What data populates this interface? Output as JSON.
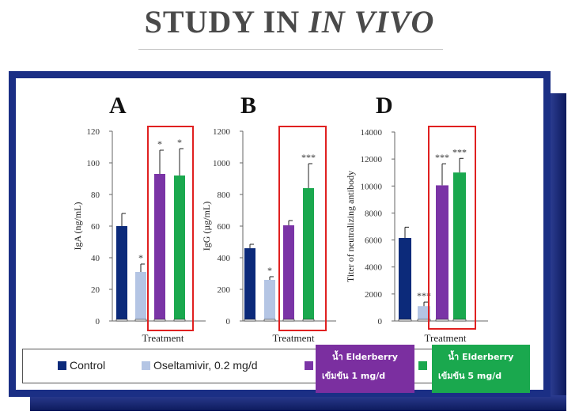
{
  "slide": {
    "title_plain": "STUDY IN ",
    "title_italic": "IN VIVO"
  },
  "colors": {
    "control": "#0c2a7a",
    "oseltamivir": "#b4c5e4",
    "elder1": "#7a34a6",
    "elder5": "#1aa84e",
    "highlight": "#e02020"
  },
  "chart_data": [
    {
      "panel": "A",
      "type": "bar",
      "categories": [
        "Control",
        "Oseltamivir, 0.2 mg/d",
        "น้ำ Elderberry เข้มข้น 1 mg/d",
        "น้ำ Elderberry เข้มข้น 5 mg/d"
      ],
      "values": [
        60,
        31,
        93,
        92
      ],
      "errors": [
        8,
        5,
        15,
        17
      ],
      "sig": [
        "",
        "*",
        "*",
        "*"
      ],
      "ylabel": "IgA (ng/mL)",
      "xlabel": "Treatment",
      "ylim": [
        0,
        120
      ],
      "yticks": [
        "0",
        "20",
        "40",
        "60",
        "80",
        "100",
        "120"
      ]
    },
    {
      "panel": "B",
      "type": "bar",
      "categories": [
        "Control",
        "Oseltamivir, 0.2 mg/d",
        "น้ำ Elderberry เข้มข้น 1 mg/d",
        "น้ำ Elderberry เข้มข้น 5 mg/d"
      ],
      "values": [
        460,
        260,
        605,
        840
      ],
      "errors": [
        25,
        20,
        30,
        155
      ],
      "sig": [
        "",
        "*",
        "",
        "***"
      ],
      "ylabel": "IgG (µg/mL)",
      "xlabel": "Treatment",
      "ylim": [
        0,
        1200
      ],
      "yticks": [
        "0",
        "200",
        "400",
        "600",
        "800",
        "1000",
        "1200"
      ]
    },
    {
      "panel": "D",
      "type": "bar",
      "categories": [
        "Control",
        "Oseltamivir, 0.2 mg/d",
        "น้ำ Elderberry เข้มข้น 1 mg/d",
        "น้ำ Elderberry เข้มข้น 5 mg/d"
      ],
      "values": [
        6150,
        1100,
        10050,
        11000
      ],
      "errors": [
        800,
        300,
        1600,
        1050
      ],
      "sig": [
        "",
        "***",
        "***",
        "***"
      ],
      "ylabel": "Titer of neutralizing antibody",
      "xlabel": "Treatment",
      "ylim": [
        0,
        14000
      ],
      "yticks": [
        "0",
        "2000",
        "4000",
        "6000",
        "8000",
        "10000",
        "12000",
        "14000"
      ]
    }
  ],
  "legend": {
    "control": "Control",
    "oseltamivir": "Oseltamivir, 0.2 mg/d",
    "elder1_line1": "น้ำ Elderberry",
    "elder1_line2": "เข้มข้น 1 mg/d",
    "elder5_line1": "น้ำ Elderberry",
    "elder5_line2": "เข้มข้น 5 mg/d"
  }
}
